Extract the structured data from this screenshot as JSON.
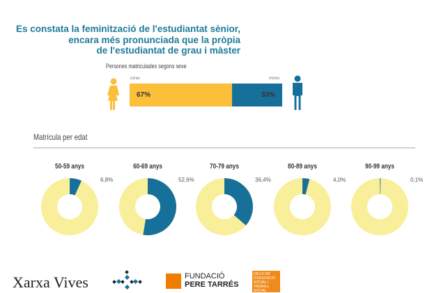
{
  "title_lines": [
    "Es constata la feminització de l'estudiantat sènior,",
    "encara més pronunciada que la pròpia",
    "de l'estudiantat de grau i màster"
  ],
  "colors": {
    "title": "#1d7a9a",
    "women": "#fbbf3a",
    "men": "#17709a",
    "donut_rest": "#f9ee9a",
    "donut_value": "#17709a"
  },
  "chart_data": [
    {
      "type": "bar",
      "title": "Persones matriculades segons sexe",
      "categories": [
        "Dones",
        "Homes"
      ],
      "values": [
        67,
        33
      ],
      "labels": [
        "67%",
        "33%"
      ],
      "stacked": true,
      "icons": [
        "woman-icon",
        "man-icon"
      ]
    },
    {
      "type": "pie",
      "title": "Matrícula per edat",
      "categories": [
        "50-59 anys",
        "60-69 anys",
        "70-79 anys",
        "80-89 anys",
        "90-99 anys"
      ],
      "values": [
        6.8,
        52.6,
        36.4,
        4.0,
        0.1
      ],
      "labels": [
        "6,8%",
        "52,6%",
        "36,4%",
        "4,0%",
        "0,1%"
      ],
      "donut": true
    }
  ],
  "logos": {
    "xarxa": "Xarxa Vives",
    "fpt": [
      "FUNDACIÓ",
      "PERE TARRÉS"
    ],
    "facultat": [
      "FACULTAT",
      "D'EDUCACIÓ",
      "SOCIAL I",
      "TREBALL",
      "SOCIAL"
    ]
  }
}
